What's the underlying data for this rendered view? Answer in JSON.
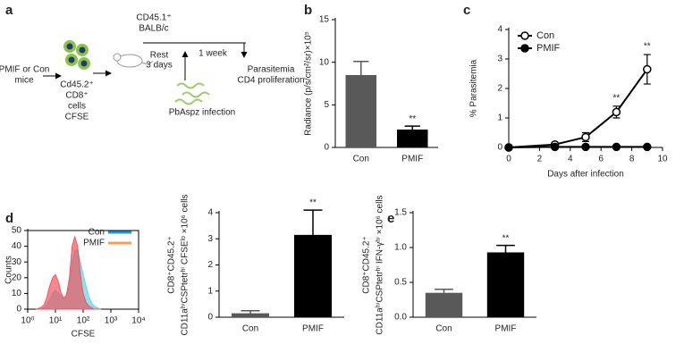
{
  "diagram": {
    "panel": "a",
    "donor_lines": [
      "PMIF or Con",
      "mice"
    ],
    "cell_lines": [
      "Cd45.2⁺",
      "CD8⁺",
      "cells",
      "CFSE"
    ],
    "recipient_lines": [
      "CD45.1⁺",
      "BALB/c"
    ],
    "rest_lines": [
      "Rest",
      "3 days"
    ],
    "week": "1 week",
    "readout_lines": [
      "Parasitemia",
      "CD4 proliferation"
    ],
    "infection": "PbAspz infection"
  },
  "chart_data": [
    {
      "type": "bar",
      "panel": "b",
      "ylabel": [
        "Radiance (p/s/cm²/sr)×10⁵"
      ],
      "categories": [
        "Con",
        "PMIF"
      ],
      "values": [
        8.5,
        2.1
      ],
      "errors": [
        1.6,
        0.4
      ],
      "colors": [
        "#595959",
        "#000000"
      ],
      "ylim": [
        0,
        15
      ],
      "yticks": [
        0,
        5,
        10,
        15
      ],
      "annotations": [
        {
          "text": "**",
          "category": "PMIF"
        }
      ]
    },
    {
      "type": "line",
      "panel": "c",
      "xlabel": "Days after infection",
      "ylabel": [
        "% Parasitemia"
      ],
      "x": [
        0,
        3,
        5,
        7,
        9
      ],
      "series": [
        {
          "name": "Con",
          "color": "#000000",
          "marker": "open",
          "values": [
            0,
            0.1,
            0.35,
            1.2,
            2.65
          ],
          "errors": [
            0.02,
            0.05,
            0.15,
            0.2,
            0.5
          ]
        },
        {
          "name": "PMIF",
          "color": "#000000",
          "marker": "filled",
          "values": [
            0,
            0.02,
            0.02,
            0.02,
            0.02
          ]
        }
      ],
      "xlim": [
        0,
        10
      ],
      "xticks": [
        0,
        2,
        4,
        6,
        8,
        10
      ],
      "ylim": [
        0,
        4
      ],
      "yticks": [
        0,
        1,
        2,
        3,
        4
      ],
      "annotations": [
        {
          "text": "**",
          "x": 7
        },
        {
          "text": "**",
          "x": 9
        }
      ]
    },
    {
      "type": "area",
      "panel": "d",
      "xlabel": "CFSE",
      "ylabel": [
        "Counts"
      ],
      "xlog": true,
      "x": [
        2,
        3,
        4,
        5,
        6,
        8,
        10,
        13,
        16,
        20,
        25,
        32,
        40,
        50,
        63,
        80,
        100,
        130,
        160,
        200,
        250,
        320,
        400
      ],
      "series": [
        {
          "name": "Con",
          "color": "#1a9bd7",
          "fill": "#5fd6ea",
          "values": [
            0,
            0,
            1,
            3,
            6,
            10,
            12,
            10,
            8,
            7,
            8,
            15,
            30,
            37,
            38,
            30,
            22,
            14,
            8,
            4,
            2,
            1,
            0
          ]
        },
        {
          "name": "PMIF",
          "color": "#f5a05a",
          "fill": "#f0555e",
          "values": [
            0,
            1,
            3,
            8,
            14,
            20,
            22,
            17,
            10,
            7,
            9,
            20,
            40,
            46,
            40,
            22,
            10,
            4,
            2,
            1,
            0,
            0,
            0
          ]
        }
      ],
      "xlim": [
        1,
        10000
      ],
      "xticks": [
        {
          "value": 1,
          "label": "10⁰"
        },
        {
          "value": 10,
          "label": "10¹"
        },
        {
          "value": 100,
          "label": "10²"
        },
        {
          "value": 1000,
          "label": "10³"
        },
        {
          "value": 10000,
          "label": "10⁴"
        }
      ],
      "ylim": [
        0,
        50
      ],
      "yticks": [
        0,
        10,
        20,
        30,
        40,
        50
      ]
    },
    {
      "type": "bar",
      "ylabel": [
        "CD8⁺CD45.2⁺",
        "CD11aʰⁱCSPtetrʰⁱ CFSEˡᵒ ×10⁶ cells"
      ],
      "categories": [
        "Con",
        "PMIF"
      ],
      "values": [
        0.15,
        3.15
      ],
      "errors": [
        0.1,
        0.95
      ],
      "colors": [
        "#595959",
        "#000000"
      ],
      "ylim": [
        0,
        4
      ],
      "yticks": [
        0,
        1,
        2,
        3,
        4
      ],
      "annotations": [
        {
          "text": "**",
          "category": "PMIF"
        }
      ]
    },
    {
      "type": "bar",
      "panel": "e",
      "ylabel": [
        "CD8⁺CD45.2⁺",
        "CD11aʰⁱCSPtetrʰⁱ IFN-γʰⁱ ×10⁶ cells"
      ],
      "categories": [
        "Con",
        "PMIF"
      ],
      "values": [
        0.35,
        0.93
      ],
      "errors": [
        0.05,
        0.1
      ],
      "colors": [
        "#595959",
        "#000000"
      ],
      "ylim": [
        0,
        1.5
      ],
      "yticks": [
        {
          "value": 0,
          "label": "0.0"
        },
        0.5,
        {
          "value": 1,
          "label": "1.0"
        },
        1.5
      ],
      "annotations": [
        {
          "text": "**",
          "category": "PMIF"
        }
      ]
    }
  ]
}
